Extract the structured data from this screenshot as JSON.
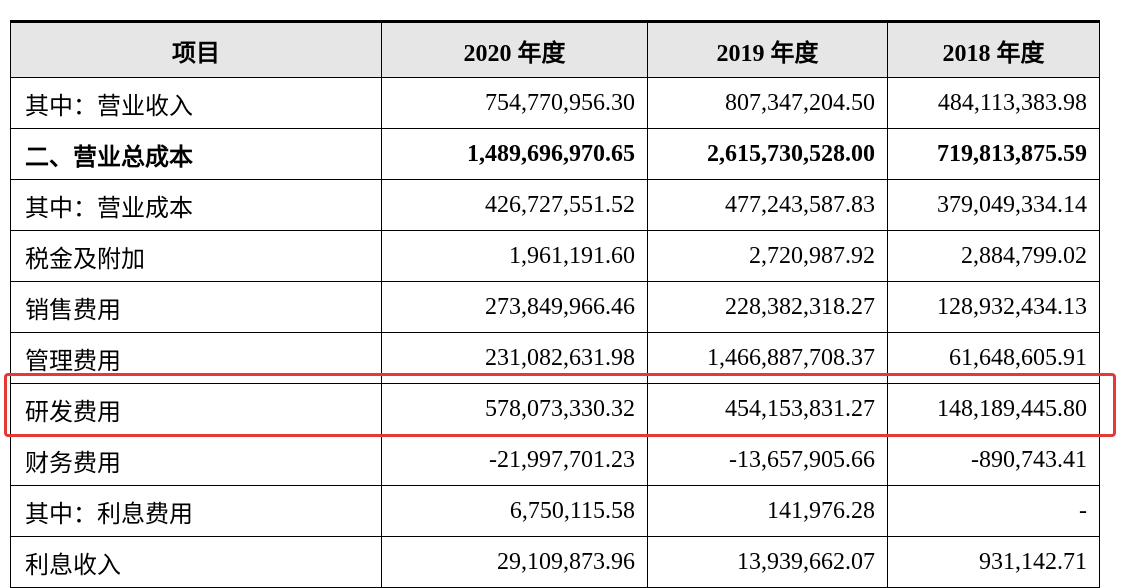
{
  "table": {
    "headers": [
      "项目",
      "2020 年度",
      "2019 年度",
      "2018 年度"
    ],
    "rows": [
      {
        "label": "其中：营业收入",
        "values": [
          "754,770,956.30",
          "807,347,204.50",
          "484,113,383.98"
        ],
        "bold": false
      },
      {
        "label": "二、营业总成本",
        "values": [
          "1,489,696,970.65",
          "2,615,730,528.00",
          "719,813,875.59"
        ],
        "bold": true
      },
      {
        "label": "其中：营业成本",
        "values": [
          "426,727,551.52",
          "477,243,587.83",
          "379,049,334.14"
        ],
        "bold": false
      },
      {
        "label": "税金及附加",
        "values": [
          "1,961,191.60",
          "2,720,987.92",
          "2,884,799.02"
        ],
        "bold": false
      },
      {
        "label": "销售费用",
        "values": [
          "273,849,966.46",
          "228,382,318.27",
          "128,932,434.13"
        ],
        "bold": false
      },
      {
        "label": "管理费用",
        "values": [
          "231,082,631.98",
          "1,466,887,708.37",
          "61,648,605.91"
        ],
        "bold": false
      },
      {
        "label": "研发费用",
        "values": [
          "578,073,330.32",
          "454,153,831.27",
          "148,189,445.80"
        ],
        "bold": false,
        "highlighted": true
      },
      {
        "label": "财务费用",
        "values": [
          "-21,997,701.23",
          "-13,657,905.66",
          "-890,743.41"
        ],
        "bold": false
      },
      {
        "label": "其中：利息费用",
        "values": [
          "6,750,115.58",
          "141,976.28",
          "-"
        ],
        "bold": false
      },
      {
        "label": "利息收入",
        "values": [
          "29,109,873.96",
          "13,939,662.07",
          "931,142.71"
        ],
        "bold": false
      }
    ]
  },
  "highlight_color": "#e53935",
  "header_background": "#e6e6e6"
}
